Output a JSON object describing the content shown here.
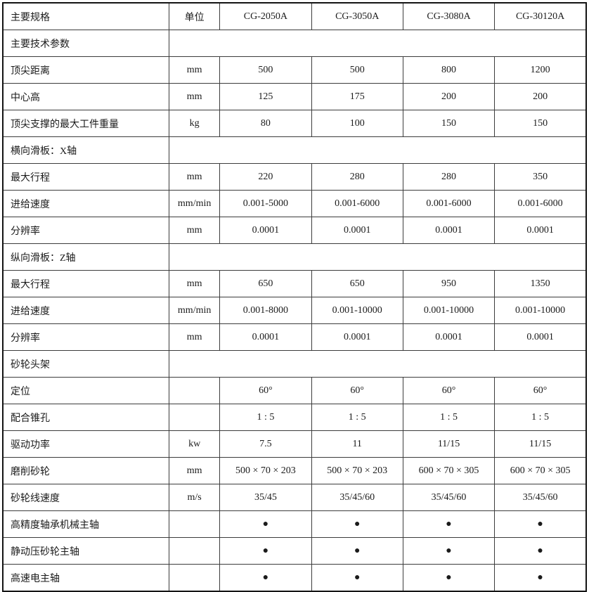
{
  "colors": {
    "background": "#ffffff",
    "text": "#1b1b1b",
    "inner_border": "#3c3c3c",
    "outer_border": "#141414"
  },
  "table": {
    "header": {
      "spec_label": "主要规格",
      "unit_label": "单位",
      "models": [
        "CG-2050A",
        "CG-3050A",
        "CG-3080A",
        "CG-30120A"
      ]
    },
    "rows": [
      {
        "type": "section",
        "label": "主要技术参数"
      },
      {
        "type": "data",
        "label": "顶尖距离",
        "unit": "mm",
        "values": [
          "500",
          "500",
          "800",
          "1200"
        ]
      },
      {
        "type": "data",
        "label": "中心高",
        "unit": "mm",
        "values": [
          "125",
          "175",
          "200",
          "200"
        ]
      },
      {
        "type": "data",
        "label": "顶尖支撑的最大工件重量",
        "unit": "kg",
        "values": [
          "80",
          "100",
          "150",
          "150"
        ]
      },
      {
        "type": "section",
        "label": "横向滑板：X轴"
      },
      {
        "type": "data",
        "label": "最大行程",
        "unit": "mm",
        "values": [
          "220",
          "280",
          "280",
          "350"
        ]
      },
      {
        "type": "data",
        "label": "进给速度",
        "unit": "mm/min",
        "values": [
          "0.001-5000",
          "0.001-6000",
          "0.001-6000",
          "0.001-6000"
        ]
      },
      {
        "type": "data",
        "label": "分辨率",
        "unit": "mm",
        "values": [
          "0.0001",
          "0.0001",
          "0.0001",
          "0.0001"
        ]
      },
      {
        "type": "section",
        "label": "纵向滑板：Z轴"
      },
      {
        "type": "data",
        "label": "最大行程",
        "unit": "mm",
        "values": [
          "650",
          "650",
          "950",
          "1350"
        ]
      },
      {
        "type": "data",
        "label": "进给速度",
        "unit": "mm/min",
        "values": [
          "0.001-8000",
          "0.001-10000",
          "0.001-10000",
          "0.001-10000"
        ]
      },
      {
        "type": "data",
        "label": "分辨率",
        "unit": "mm",
        "values": [
          "0.0001",
          "0.0001",
          "0.0001",
          "0.0001"
        ]
      },
      {
        "type": "section",
        "label": "砂轮头架"
      },
      {
        "type": "data",
        "label": "定位",
        "unit": "",
        "values": [
          "60°",
          "60°",
          "60°",
          "60°"
        ]
      },
      {
        "type": "data",
        "label": "配合锥孔",
        "unit": "",
        "values": [
          "1 : 5",
          "1 : 5",
          "1 : 5",
          "1 : 5"
        ]
      },
      {
        "type": "data",
        "label": "驱动功率",
        "unit": "kw",
        "values": [
          "7.5",
          "11",
          "11/15",
          "11/15"
        ]
      },
      {
        "type": "data",
        "label": "磨削砂轮",
        "unit": "mm",
        "values": [
          "500 × 70 × 203",
          "500 × 70 × 203",
          "600 × 70 × 305",
          "600 × 70 × 305"
        ]
      },
      {
        "type": "data",
        "label": "砂轮线速度",
        "unit": "m/s",
        "values": [
          "35/45",
          "35/45/60",
          "35/45/60",
          "35/45/60"
        ]
      },
      {
        "type": "data",
        "label": "高精度轴承机械主轴",
        "unit": "",
        "values": [
          "●",
          "●",
          "●",
          "●"
        ]
      },
      {
        "type": "data",
        "label": "静动压砂轮主轴",
        "unit": "",
        "values": [
          "●",
          "●",
          "●",
          "●"
        ]
      },
      {
        "type": "data",
        "label": "高速电主轴",
        "unit": "",
        "values": [
          "●",
          "●",
          "●",
          "●"
        ]
      }
    ]
  }
}
